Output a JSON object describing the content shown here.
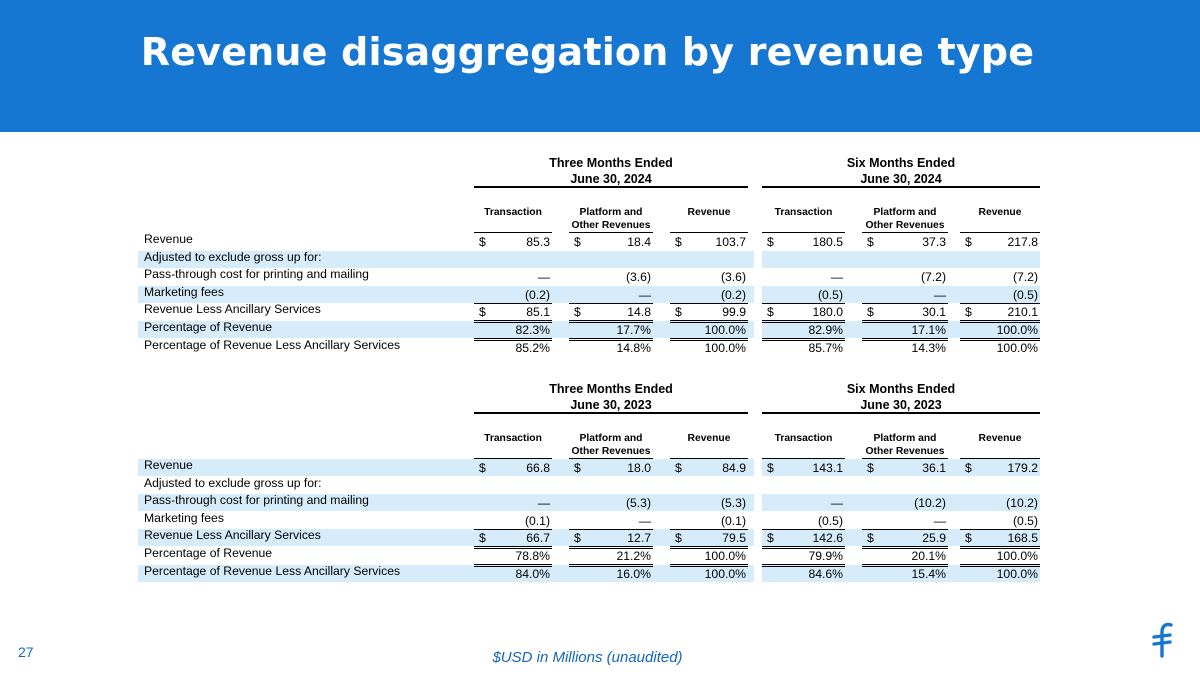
{
  "slide": {
    "title": "Revenue disaggregation by revenue type",
    "page_number": "27",
    "footnote": "$USD in Millions (unaudited)",
    "header_color": "#1677d2",
    "band_color": "#d6ecfa",
    "text_color_accent": "#1466b8",
    "logo_icon": "flywire-f-logo-icon"
  },
  "tables": [
    {
      "period_headers": [
        {
          "line1": "Three Months Ended",
          "line2": "June 30, 2024"
        },
        {
          "line1": "Six Months Ended",
          "line2": "June 30, 2024"
        }
      ],
      "columns": [
        {
          "line1": "",
          "line2": "Transaction"
        },
        {
          "line1": "Platform and",
          "line2": "Other Revenues"
        },
        {
          "line1": "",
          "line2": "Revenue"
        },
        {
          "line1": "",
          "line2": "Transaction"
        },
        {
          "line1": "Platform and",
          "line2": "Other Revenues"
        },
        {
          "line1": "",
          "line2": "Revenue"
        }
      ],
      "rows": [
        {
          "label": "Revenue",
          "dollar": true,
          "values": [
            "85.3",
            "18.4",
            "103.7",
            "180.5",
            "37.3",
            "217.8"
          ]
        },
        {
          "label": "Adjusted to exclude gross up for:",
          "dollar": false,
          "values": [
            "",
            "",
            "",
            "",
            "",
            ""
          ]
        },
        {
          "label": "Pass-through cost for printing and mailing",
          "dollar": false,
          "values": [
            "—",
            "(3.6)",
            "(3.6)",
            "—",
            "(7.2)",
            "(7.2)"
          ]
        },
        {
          "label": "Marketing fees",
          "dollar": false,
          "values": [
            "(0.2)",
            "—",
            "(0.2)",
            "(0.5)",
            "—",
            "(0.5)"
          ]
        },
        {
          "label": "Revenue Less Ancillary Services",
          "dollar": true,
          "values": [
            "85.1",
            "14.8",
            "99.9",
            "180.0",
            "30.1",
            "210.1"
          ]
        },
        {
          "label": "Percentage of Revenue",
          "dollar": false,
          "values": [
            "82.3%",
            "17.7%",
            "100.0%",
            "82.9%",
            "17.1%",
            "100.0%"
          ]
        },
        {
          "label": "Percentage of Revenue Less Ancillary Services",
          "dollar": false,
          "values": [
            "85.2%",
            "14.8%",
            "100.0%",
            "85.7%",
            "14.3%",
            "100.0%"
          ]
        }
      ]
    },
    {
      "period_headers": [
        {
          "line1": "Three Months Ended",
          "line2": "June 30, 2023"
        },
        {
          "line1": "Six Months Ended",
          "line2": "June 30, 2023"
        }
      ],
      "columns": [
        {
          "line1": "",
          "line2": "Transaction"
        },
        {
          "line1": "Platform and",
          "line2": "Other Revenues"
        },
        {
          "line1": "",
          "line2": "Revenue"
        },
        {
          "line1": "",
          "line2": "Transaction"
        },
        {
          "line1": "Platform and",
          "line2": "Other Revenues"
        },
        {
          "line1": "",
          "line2": "Revenue"
        }
      ],
      "rows": [
        {
          "label": "Revenue",
          "dollar": true,
          "values": [
            "66.8",
            "18.0",
            "84.9",
            "143.1",
            "36.1",
            "179.2"
          ]
        },
        {
          "label": "Adjusted to exclude gross up for:",
          "dollar": false,
          "values": [
            "",
            "",
            "",
            "",
            "",
            ""
          ]
        },
        {
          "label": "Pass-through cost for printing and mailing",
          "dollar": false,
          "values": [
            "—",
            "(5.3)",
            "(5.3)",
            "—",
            "(10.2)",
            "(10.2)"
          ]
        },
        {
          "label": "Marketing fees",
          "dollar": false,
          "values": [
            "(0.1)",
            "—",
            "(0.1)",
            "(0.5)",
            "—",
            "(0.5)"
          ]
        },
        {
          "label": "Revenue Less Ancillary Services",
          "dollar": true,
          "values": [
            "66.7",
            "12.7",
            "79.5",
            "142.6",
            "25.9",
            "168.5"
          ]
        },
        {
          "label": "Percentage of Revenue",
          "dollar": false,
          "values": [
            "78.8%",
            "21.2%",
            "100.0%",
            "79.9%",
            "20.1%",
            "100.0%"
          ]
        },
        {
          "label": "Percentage of Revenue Less Ancillary Services",
          "dollar": false,
          "values": [
            "84.0%",
            "16.0%",
            "100.0%",
            "84.6%",
            "15.4%",
            "100.0%"
          ]
        }
      ]
    }
  ]
}
